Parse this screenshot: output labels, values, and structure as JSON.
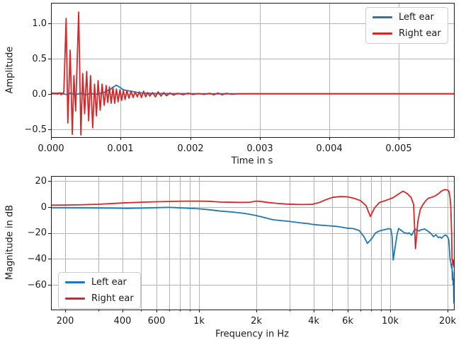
{
  "window": {
    "background": "#ffffff"
  },
  "colors": {
    "left_ear": "#1f77b4",
    "right_ear": "#d62728",
    "grid": "#b4b4b4",
    "axis": "#1a1a1a",
    "text": "#1a1a1a",
    "legend_border": "#cccccc",
    "legend_background": "#ffffff"
  },
  "chart_data": [
    {
      "type": "line",
      "title": "",
      "xlabel": "Time in s",
      "ylabel": "Amplitude",
      "xscale": "linear",
      "xlim": [
        0,
        0.00579
      ],
      "ylim": [
        -0.61,
        1.29
      ],
      "grid": true,
      "legend_position": "upper right",
      "x_ticks": {
        "values": [
          0,
          0.001,
          0.002,
          0.003,
          0.004,
          0.005
        ],
        "labels": [
          "0.000",
          "0.001",
          "0.002",
          "0.003",
          "0.004",
          "0.005"
        ]
      },
      "y_ticks": {
        "values": [
          -0.5,
          0,
          0.5,
          1
        ],
        "labels": [
          "−0.5",
          "0.0",
          "0.5",
          "1.0"
        ]
      },
      "series": [
        {
          "name": "Left ear",
          "color": "#1f77b4",
          "points": [
            [
              0,
              0.012
            ],
            [
              0.00012,
              0.012
            ],
            [
              0.00018,
              0.005
            ],
            [
              0.00022,
              -0.008
            ],
            [
              0.00028,
              0.014
            ],
            [
              0.00035,
              -0.012
            ],
            [
              0.00042,
              0.012
            ],
            [
              0.0005,
              -0.01
            ],
            [
              0.00057,
              0.01
            ],
            [
              0.00064,
              -0.005
            ],
            [
              0.0007,
              0.008
            ],
            [
              0.00076,
              0.02
            ],
            [
              0.0008,
              0.045
            ],
            [
              0.00085,
              0.06
            ],
            [
              0.00088,
              0.09
            ],
            [
              0.00094,
              0.125
            ],
            [
              0.00099,
              0.095
            ],
            [
              0.00103,
              0.065
            ],
            [
              0.00108,
              0.05
            ],
            [
              0.00115,
              0.04
            ],
            [
              0.00122,
              0.025
            ],
            [
              0.0013,
              0.015
            ],
            [
              0.00145,
              0.008
            ],
            [
              0.0017,
              0.006
            ],
            [
              0.0022,
              0.004
            ],
            [
              0.003,
              0.004
            ],
            [
              0.00579,
              0.004
            ]
          ]
        },
        {
          "name": "Right ear",
          "color": "#d62728",
          "points": [
            [
              0,
              0.005
            ],
            [
              6e-05,
              0.008
            ],
            [
              0.0001,
              0.0
            ],
            [
              0.000125,
              0.018
            ],
            [
              0.000145,
              -0.012
            ],
            [
              0.00016,
              0.015
            ],
            [
              0.000175,
              0.0
            ],
            [
              0.000185,
              0.04
            ],
            [
              0.000218,
              1.07
            ],
            [
              0.000242,
              -0.41
            ],
            [
              0.000276,
              0.62
            ],
            [
              0.000306,
              -0.57
            ],
            [
              0.00033,
              0.26
            ],
            [
              0.000354,
              -0.24
            ],
            [
              0.000398,
              1.16
            ],
            [
              0.000429,
              -0.58
            ],
            [
              0.000456,
              0.29
            ],
            [
              0.000483,
              -0.28
            ],
            [
              0.000513,
              0.32
            ],
            [
              0.000541,
              -0.38
            ],
            [
              0.000568,
              0.26
            ],
            [
              0.000599,
              -0.48
            ],
            [
              0.000626,
              0.14
            ],
            [
              0.000653,
              -0.31
            ],
            [
              0.000677,
              0.19
            ],
            [
              0.000707,
              -0.23
            ],
            [
              0.000735,
              0.14
            ],
            [
              0.000765,
              -0.16
            ],
            [
              0.000793,
              0.12
            ],
            [
              0.000816,
              -0.12
            ],
            [
              0.00084,
              0.1
            ],
            [
              0.000865,
              -0.13
            ],
            [
              0.00089,
              0.09
            ],
            [
              0.000915,
              -0.13
            ],
            [
              0.00094,
              0.07
            ],
            [
              0.000965,
              -0.11
            ],
            [
              0.00099,
              0.06
            ],
            [
              0.001015,
              -0.09
            ],
            [
              0.00104,
              0.05
            ],
            [
              0.001065,
              -0.08
            ],
            [
              0.00109,
              0.05
            ],
            [
              0.00112,
              -0.06
            ],
            [
              0.00115,
              0.04
            ],
            [
              0.00118,
              -0.05
            ],
            [
              0.00121,
              0.03
            ],
            [
              0.00124,
              -0.04
            ],
            [
              0.00127,
              0.03
            ],
            [
              0.0013,
              -0.05
            ],
            [
              0.00133,
              0.04
            ],
            [
              0.00136,
              -0.04
            ],
            [
              0.00139,
              0.02
            ],
            [
              0.00142,
              -0.03
            ],
            [
              0.00146,
              0.02
            ],
            [
              0.0015,
              -0.04
            ],
            [
              0.00154,
              0.03
            ],
            [
              0.00158,
              -0.03
            ],
            [
              0.00162,
              0.02
            ],
            [
              0.00166,
              -0.025
            ],
            [
              0.00171,
              0.015
            ],
            [
              0.00176,
              -0.015
            ],
            [
              0.00182,
              0.01
            ],
            [
              0.0019,
              -0.01
            ],
            [
              0.00197,
              0.012
            ],
            [
              0.00204,
              -0.008
            ],
            [
              0.00212,
              0.008
            ],
            [
              0.0022,
              -0.006
            ],
            [
              0.00228,
              0.01
            ],
            [
              0.00234,
              -0.012
            ],
            [
              0.0024,
              0.014
            ],
            [
              0.00246,
              -0.012
            ],
            [
              0.00252,
              0.01
            ],
            [
              0.0026,
              -0.005
            ],
            [
              0.0027,
              0.004
            ],
            [
              0.003,
              0.003
            ],
            [
              0.004,
              0.003
            ],
            [
              0.00579,
              0.003
            ]
          ]
        }
      ]
    },
    {
      "type": "line",
      "title": "",
      "xlabel": "Frequency in Hz",
      "ylabel": "Magnitude in dB",
      "xscale": "log",
      "xlim": [
        169,
        21600
      ],
      "ylim": [
        -79,
        24
      ],
      "grid": true,
      "legend_position": "lower left",
      "x_ticks": {
        "values": [
          200,
          400,
          600,
          1000,
          2000,
          4000,
          6000,
          10000,
          20000
        ],
        "labels": [
          "200",
          "400",
          "600",
          "1k",
          "2k",
          "4k",
          "6k",
          "10k",
          "20k"
        ]
      },
      "x_minor": [
        300,
        500,
        700,
        800,
        900,
        3000,
        5000,
        7000,
        8000,
        9000
      ],
      "y_ticks": {
        "values": [
          20,
          0,
          -20,
          -40,
          -60
        ],
        "labels": [
          "20",
          "0",
          "−20",
          "−40",
          "−60"
        ]
      },
      "series": [
        {
          "name": "Left ear",
          "color": "#1f77b4",
          "points": [
            [
              169,
              -0.5
            ],
            [
              200,
              -0.5
            ],
            [
              250,
              -0.6
            ],
            [
              300,
              -0.7
            ],
            [
              350,
              -0.8
            ],
            [
              424,
              -1.0
            ],
            [
              500,
              -0.8
            ],
            [
              560,
              -0.6
            ],
            [
              630,
              -0.35
            ],
            [
              690,
              -0.2
            ],
            [
              750,
              -0.35
            ],
            [
              800,
              -0.6
            ],
            [
              900,
              -1.0
            ],
            [
              1000,
              -1.3
            ],
            [
              1130,
              -2.0
            ],
            [
              1300,
              -3.1
            ],
            [
              1500,
              -3.8
            ],
            [
              1740,
              -4.9
            ],
            [
              1950,
              -6.2
            ],
            [
              2200,
              -8.0
            ],
            [
              2450,
              -9.8
            ],
            [
              2700,
              -10.4
            ],
            [
              3000,
              -11.1
            ],
            [
              3350,
              -12.0
            ],
            [
              3800,
              -12.9
            ],
            [
              3900,
              -13.3
            ],
            [
              4360,
              -14.0
            ],
            [
              4800,
              -14.4
            ],
            [
              5200,
              -14.8
            ],
            [
              5500,
              -15.3
            ],
            [
              5950,
              -16.2
            ],
            [
              6450,
              -16.6
            ],
            [
              6900,
              -18.0
            ],
            [
              7300,
              -22.6
            ],
            [
              7630,
              -28.0
            ],
            [
              8070,
              -23.9
            ],
            [
              8400,
              -19.9
            ],
            [
              8800,
              -18.4
            ],
            [
              9200,
              -17.7
            ],
            [
              9850,
              -16.6
            ],
            [
              10100,
              -16.9
            ],
            [
              10250,
              -22.0
            ],
            [
              10400,
              -40.8
            ],
            [
              10650,
              -30.8
            ],
            [
              10900,
              -20.8
            ],
            [
              11100,
              -16.5
            ],
            [
              11400,
              -17.7
            ],
            [
              11900,
              -19.9
            ],
            [
              12200,
              -20.0
            ],
            [
              12400,
              -20.5
            ],
            [
              12600,
              -19.8
            ],
            [
              13000,
              -21.7
            ],
            [
              13500,
              -16.8
            ],
            [
              13900,
              -18.0
            ],
            [
              14200,
              -18.4
            ],
            [
              14500,
              -17.6
            ],
            [
              14800,
              -17.3
            ],
            [
              15200,
              -16.9
            ],
            [
              15800,
              -18.5
            ],
            [
              16400,
              -20.4
            ],
            [
              16900,
              -22.8
            ],
            [
              17400,
              -21.3
            ],
            [
              17900,
              -23.5
            ],
            [
              18300,
              -23.0
            ],
            [
              18600,
              -24.0
            ],
            [
              19200,
              -22.0
            ],
            [
              19600,
              -21.5
            ],
            [
              20000,
              -23.0
            ],
            [
              20300,
              -25.0
            ],
            [
              20600,
              -39.0
            ],
            [
              20800,
              -43.0
            ],
            [
              21000,
              -47.0
            ],
            [
              21100,
              -44.0
            ],
            [
              21200,
              -56.0
            ],
            [
              21300,
              -50.0
            ],
            [
              21400,
              -60.0
            ],
            [
              21500,
              -55.0
            ],
            [
              21550,
              -68.0
            ],
            [
              21600,
              -74.0
            ]
          ]
        },
        {
          "name": "Right ear",
          "color": "#d62728",
          "points": [
            [
              169,
              1.5
            ],
            [
              200,
              1.6
            ],
            [
              250,
              1.9
            ],
            [
              300,
              2.2
            ],
            [
              400,
              3.2
            ],
            [
              500,
              3.8
            ],
            [
              600,
              4.1
            ],
            [
              700,
              4.3
            ],
            [
              855,
              4.6
            ],
            [
              1000,
              4.6
            ],
            [
              1130,
              4.5
            ],
            [
              1300,
              3.9
            ],
            [
              1500,
              3.7
            ],
            [
              1700,
              3.6
            ],
            [
              1850,
              3.8
            ],
            [
              2000,
              4.6
            ],
            [
              2150,
              4.2
            ],
            [
              2350,
              3.4
            ],
            [
              2600,
              2.8
            ],
            [
              2900,
              2.3
            ],
            [
              3200,
              2.1
            ],
            [
              3500,
              2.0
            ],
            [
              3900,
              2.1
            ],
            [
              4250,
              3.4
            ],
            [
              4600,
              5.6
            ],
            [
              5000,
              7.5
            ],
            [
              5470,
              8.1
            ],
            [
              5950,
              8.0
            ],
            [
              6450,
              6.9
            ],
            [
              7000,
              5.1
            ],
            [
              7500,
              1.1
            ],
            [
              7900,
              -7.2
            ],
            [
              8300,
              -0.7
            ],
            [
              8800,
              3.5
            ],
            [
              9500,
              5.1
            ],
            [
              10400,
              7.3
            ],
            [
              11000,
              9.8
            ],
            [
              11700,
              12.3
            ],
            [
              12300,
              10.5
            ],
            [
              12900,
              7.5
            ],
            [
              13300,
              2.0
            ],
            [
              13600,
              -32.0
            ],
            [
              14000,
              -11.0
            ],
            [
              14400,
              -2.0
            ],
            [
              14800,
              1.5
            ],
            [
              15400,
              5.0
            ],
            [
              15900,
              6.9
            ],
            [
              16500,
              7.5
            ],
            [
              17300,
              8.8
            ],
            [
              18000,
              10.5
            ],
            [
              18600,
              12.4
            ],
            [
              19300,
              13.5
            ],
            [
              19800,
              13.3
            ],
            [
              20300,
              12.5
            ],
            [
              20600,
              8.0
            ],
            [
              20800,
              0.0
            ],
            [
              21000,
              -20.0
            ],
            [
              21100,
              -39.0
            ],
            [
              21300,
              -44.0
            ],
            [
              21450,
              -41.0
            ],
            [
              21600,
              -46.0
            ]
          ]
        }
      ]
    }
  ]
}
